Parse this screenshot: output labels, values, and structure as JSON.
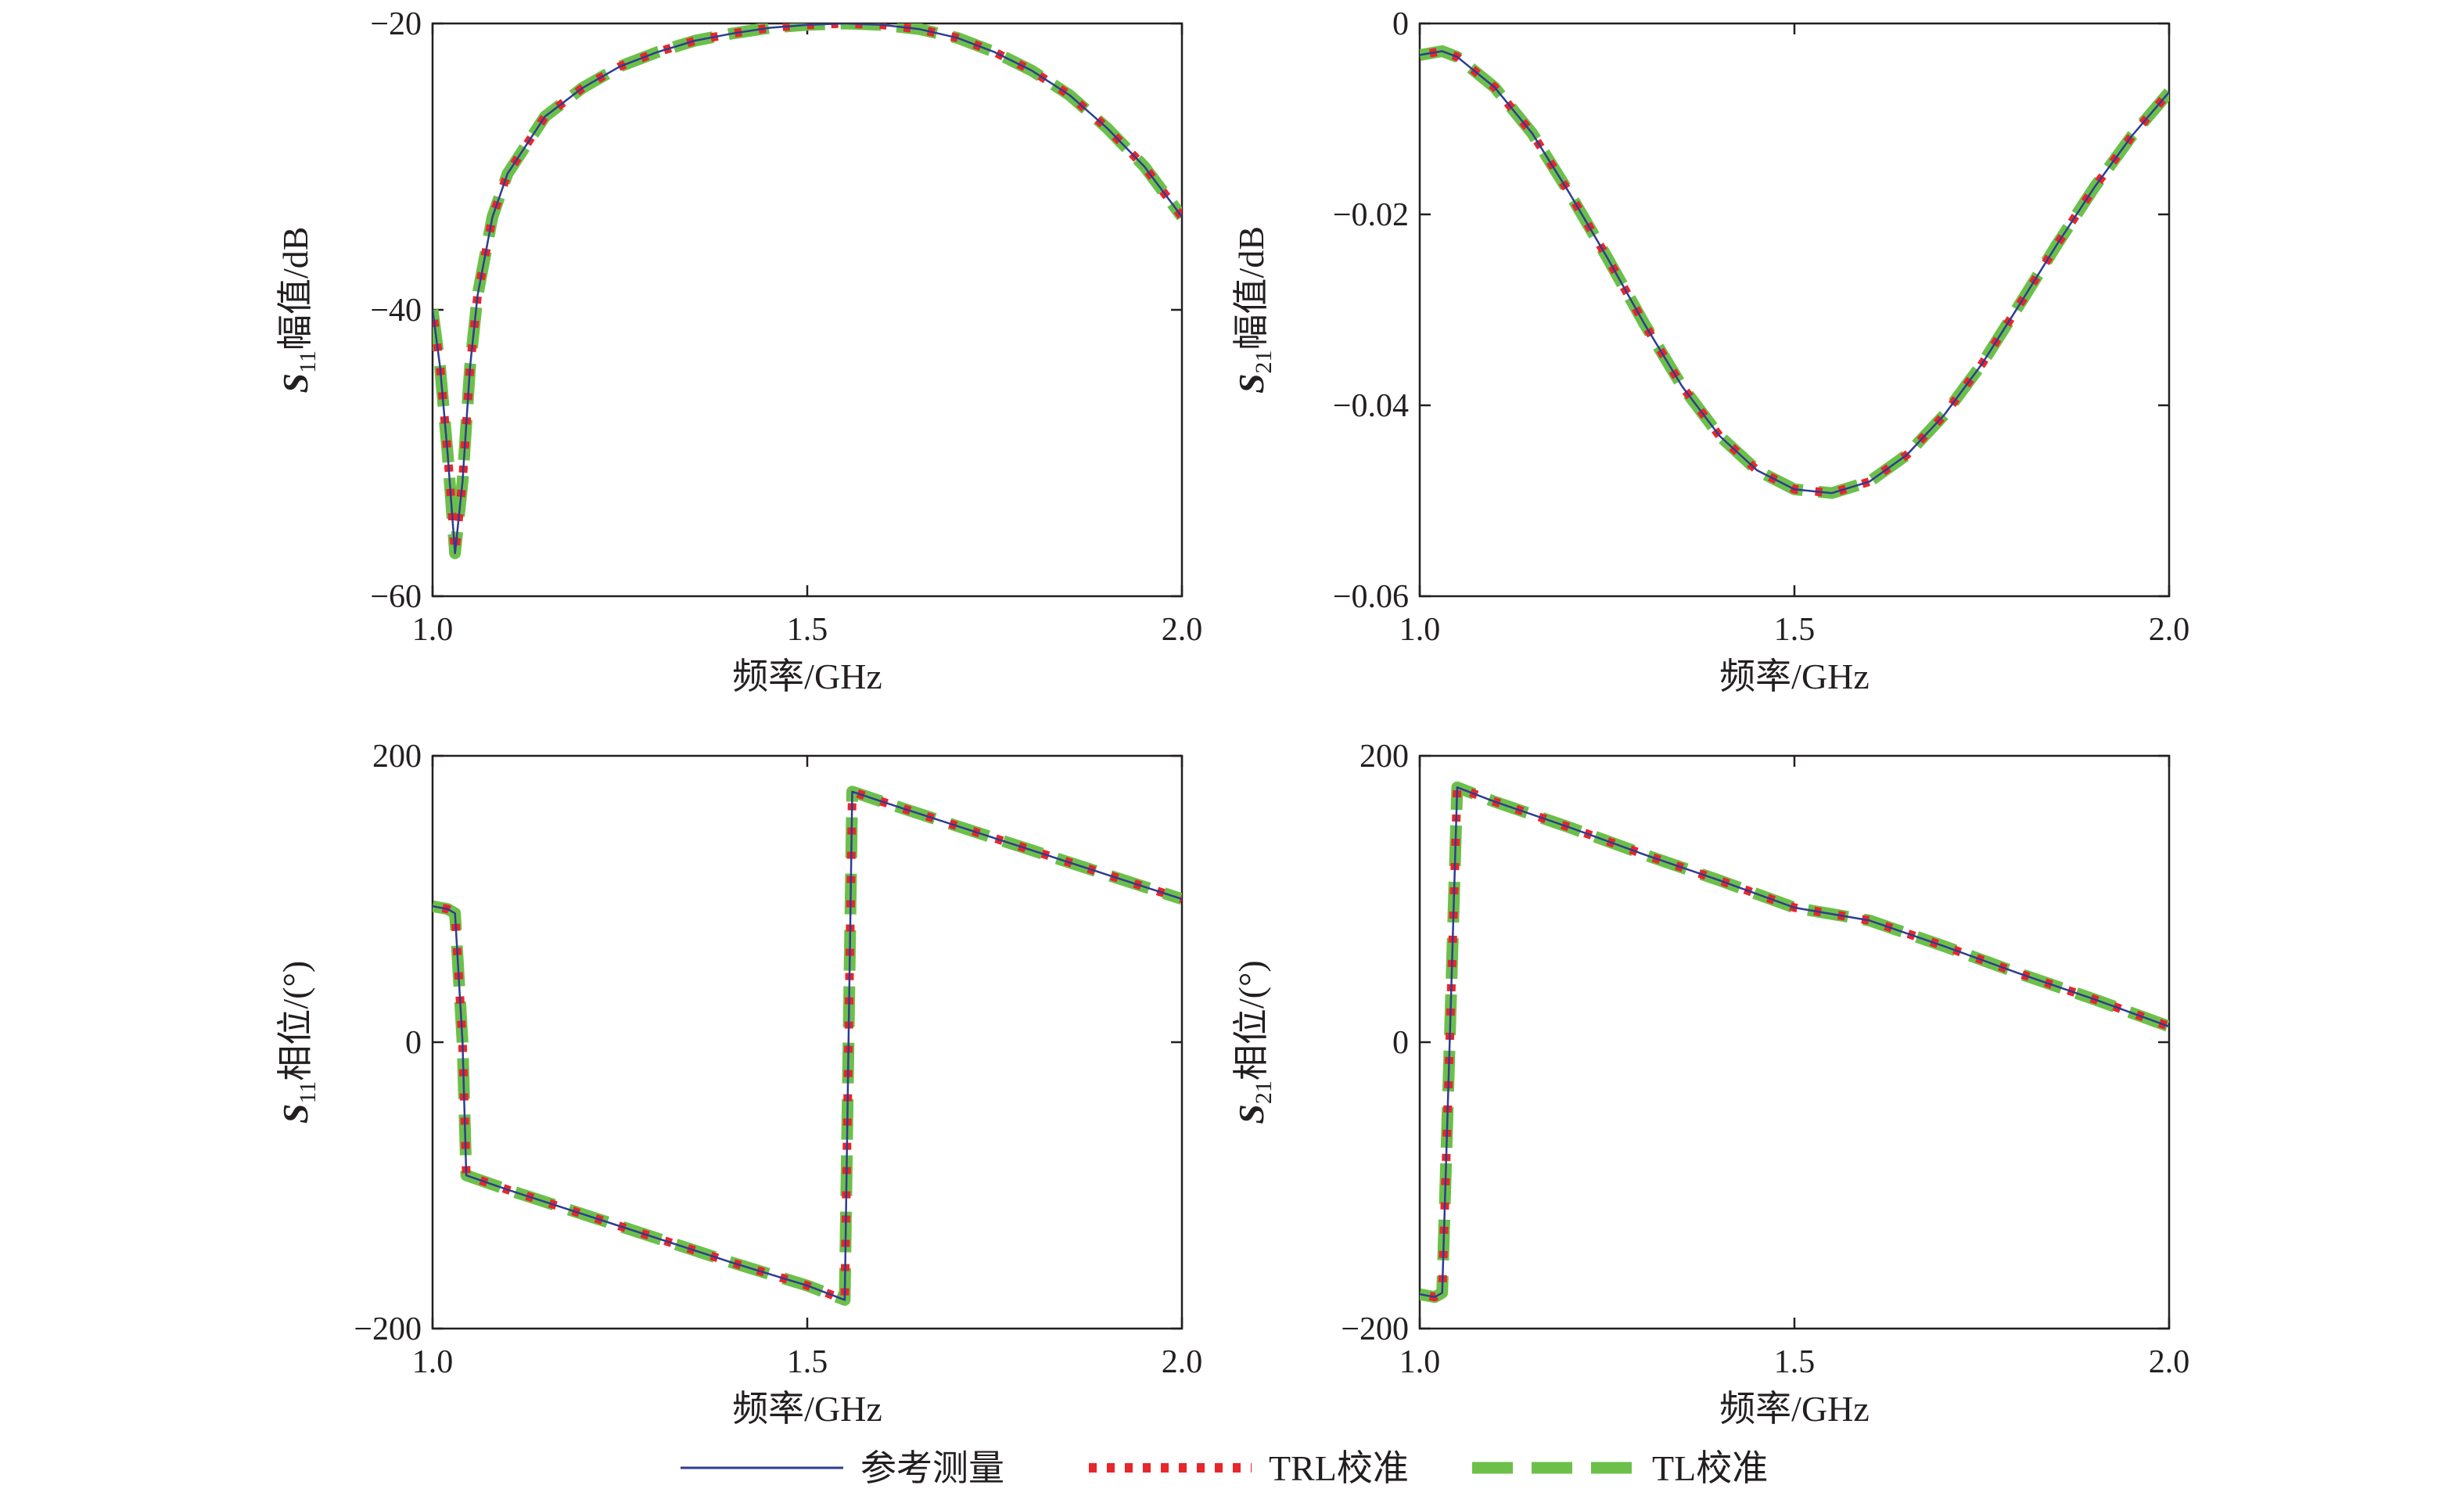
{
  "chart_data": [
    {
      "type": "line",
      "xlabel": "频率/GHz",
      "ylabel": {
        "symbol": "S",
        "sub": "11",
        "text": "幅值/dB"
      },
      "xlim": [
        1.0,
        2.0
      ],
      "ylim": [
        -60,
        -20
      ],
      "xticks": [
        1.0,
        1.5,
        2.0
      ],
      "xtick_labels": [
        "1.0",
        "1.5",
        "2.0"
      ],
      "yticks": [
        -60,
        -40,
        -20
      ],
      "ytick_labels": [
        "−60",
        "−40",
        "−20"
      ],
      "x": [
        1.0,
        1.01,
        1.02,
        1.03,
        1.04,
        1.05,
        1.06,
        1.08,
        1.1,
        1.15,
        1.2,
        1.25,
        1.3,
        1.35,
        1.4,
        1.45,
        1.5,
        1.55,
        1.6,
        1.65,
        1.7,
        1.75,
        1.8,
        1.85,
        1.9,
        1.95,
        2.0
      ],
      "values": [
        -40,
        -44,
        -50,
        -57,
        -52,
        -44,
        -39,
        -33.5,
        -30.5,
        -26.5,
        -24.5,
        -23,
        -22,
        -21.2,
        -20.7,
        -20.3,
        -20.1,
        -20.0,
        -20.1,
        -20.4,
        -21,
        -22,
        -23.3,
        -25,
        -27.3,
        -30,
        -33.5
      ]
    },
    {
      "type": "line",
      "xlabel": "频率/GHz",
      "ylabel": {
        "symbol": "S",
        "sub": "21",
        "text": "幅值/dB"
      },
      "xlim": [
        1.0,
        2.0
      ],
      "ylim": [
        -0.06,
        0
      ],
      "xticks": [
        1.0,
        1.5,
        2.0
      ],
      "xtick_labels": [
        "1.0",
        "1.5",
        "2.0"
      ],
      "yticks": [
        -0.06,
        -0.04,
        -0.02,
        0
      ],
      "ytick_labels": [
        "−0.06",
        "−0.04",
        "−0.02",
        "0"
      ],
      "x": [
        1.0,
        1.03,
        1.05,
        1.1,
        1.15,
        1.2,
        1.25,
        1.3,
        1.35,
        1.4,
        1.45,
        1.5,
        1.55,
        1.6,
        1.65,
        1.7,
        1.75,
        1.8,
        1.85,
        1.9,
        1.95,
        2.0
      ],
      "values": [
        -0.0033,
        -0.0029,
        -0.0035,
        -0.0067,
        -0.0115,
        -0.0178,
        -0.0245,
        -0.0315,
        -0.038,
        -0.0432,
        -0.0468,
        -0.0488,
        -0.0492,
        -0.048,
        -0.0452,
        -0.041,
        -0.0357,
        -0.0295,
        -0.0232,
        -0.0172,
        -0.0118,
        -0.0072
      ]
    },
    {
      "type": "line",
      "xlabel": "频率/GHz",
      "ylabel": {
        "symbol": "S",
        "sub": "11",
        "text": "相位/(°)"
      },
      "xlim": [
        1.0,
        2.0
      ],
      "ylim": [
        -200,
        200
      ],
      "xticks": [
        1.0,
        1.5,
        2.0
      ],
      "xtick_labels": [
        "1.0",
        "1.5",
        "2.0"
      ],
      "yticks": [
        -200,
        0,
        200
      ],
      "ytick_labels": [
        "−200",
        "0",
        "200"
      ],
      "x": [
        1.0,
        1.02,
        1.03,
        1.04,
        1.045,
        1.1,
        1.2,
        1.3,
        1.4,
        1.5,
        1.55,
        1.56,
        1.6,
        1.7,
        1.8,
        1.9,
        2.0
      ],
      "values": [
        95,
        93,
        90,
        0,
        -93,
        -103,
        -120,
        -137,
        -154,
        -170,
        -180,
        175,
        168,
        151,
        134,
        117,
        100
      ]
    },
    {
      "type": "line",
      "xlabel": "频率/GHz",
      "ylabel": {
        "symbol": "S",
        "sub": "21",
        "text": "相位/(°)"
      },
      "xlim": [
        1.0,
        2.0
      ],
      "ylim": [
        -200,
        200
      ],
      "xticks": [
        1.0,
        1.5,
        2.0
      ],
      "xtick_labels": [
        "1.0",
        "1.5",
        "2.0"
      ],
      "yticks": [
        -200,
        0,
        200
      ],
      "ytick_labels": [
        "−200",
        "0",
        "200"
      ],
      "x": [
        1.0,
        1.02,
        1.03,
        1.04,
        1.05,
        1.1,
        1.2,
        1.3,
        1.4,
        1.5,
        1.6,
        1.7,
        1.8,
        1.9,
        2.0
      ],
      "values": [
        -176,
        -178,
        -175,
        0,
        178,
        168,
        150,
        131,
        113,
        94,
        85,
        67,
        48,
        30,
        11
      ]
    }
  ],
  "legend": {
    "position": "bottom",
    "entries": [
      {
        "label": "参考测量",
        "color": "#2d3e8f",
        "style": "solid"
      },
      {
        "label": "TRL校准",
        "color": "#e8262b",
        "style": "dotted"
      },
      {
        "label": "TL校准",
        "color": "#6cc04a",
        "style": "dashed"
      }
    ]
  }
}
